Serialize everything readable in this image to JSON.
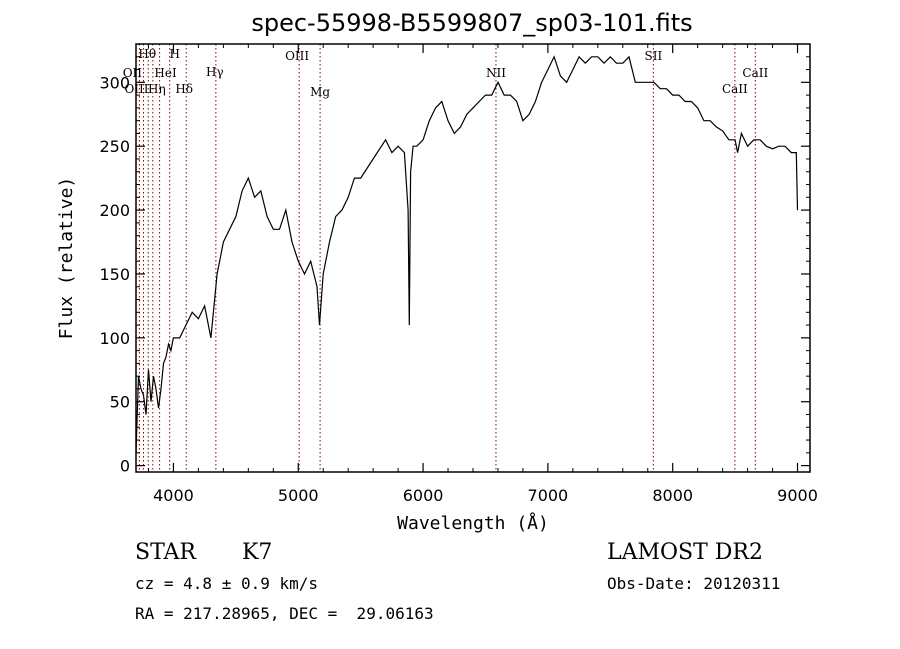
{
  "chart_data": {
    "type": "line",
    "title": "spec-55998-B5599807_sp03-101.fits",
    "xlabel": "Wavelength (Å)",
    "ylabel": "Flux (relative)",
    "xlim": [
      3700,
      9100
    ],
    "ylim": [
      -5,
      330
    ],
    "x_ticks": [
      4000,
      5000,
      6000,
      7000,
      8000,
      9000
    ],
    "y_ticks": [
      0,
      50,
      100,
      150,
      200,
      250,
      300
    ],
    "grid": false,
    "legend": "none",
    "line_color": "#000000",
    "marker_color": "#8b0000",
    "series": [
      {
        "x": [
          3700,
          3720,
          3740,
          3760,
          3780,
          3800,
          3820,
          3840,
          3860,
          3880,
          3900,
          3920,
          3940,
          3960,
          3980,
          4000,
          4050,
          4100,
          4150,
          4200,
          4250,
          4300,
          4350,
          4400,
          4450,
          4500,
          4550,
          4600,
          4650,
          4700,
          4750,
          4800,
          4850,
          4900,
          4950,
          5000,
          5050,
          5100,
          5150,
          5170,
          5200,
          5250,
          5300,
          5350,
          5400,
          5450,
          5500,
          5600,
          5700,
          5750,
          5800,
          5850,
          5880,
          5890,
          5900,
          5920,
          5950,
          6000,
          6050,
          6100,
          6150,
          6200,
          6250,
          6300,
          6350,
          6400,
          6450,
          6500,
          6550,
          6600,
          6650,
          6700,
          6750,
          6800,
          6850,
          6900,
          6950,
          7000,
          7050,
          7100,
          7150,
          7200,
          7250,
          7300,
          7350,
          7400,
          7450,
          7500,
          7550,
          7600,
          7650,
          7700,
          7750,
          7800,
          7850,
          7900,
          7950,
          8000,
          8050,
          8100,
          8150,
          8200,
          8250,
          8300,
          8350,
          8400,
          8450,
          8500,
          8520,
          8550,
          8600,
          8650,
          8700,
          8750,
          8800,
          8850,
          8900,
          8950,
          8990,
          9000
        ],
        "y": [
          10,
          70,
          60,
          55,
          40,
          75,
          50,
          70,
          60,
          45,
          60,
          80,
          85,
          95,
          90,
          100,
          100,
          110,
          120,
          115,
          125,
          100,
          150,
          175,
          185,
          195,
          215,
          225,
          210,
          215,
          195,
          185,
          185,
          200,
          175,
          160,
          150,
          160,
          140,
          110,
          150,
          175,
          195,
          200,
          210,
          225,
          225,
          240,
          255,
          245,
          250,
          245,
          200,
          110,
          230,
          250,
          250,
          255,
          270,
          280,
          285,
          270,
          260,
          265,
          275,
          280,
          285,
          290,
          290,
          300,
          290,
          290,
          285,
          270,
          275,
          285,
          300,
          310,
          320,
          305,
          300,
          310,
          320,
          315,
          320,
          320,
          315,
          320,
          315,
          315,
          320,
          300,
          300,
          300,
          300,
          295,
          295,
          290,
          290,
          285,
          285,
          280,
          270,
          270,
          265,
          262,
          255,
          255,
          245,
          260,
          250,
          255,
          255,
          250,
          248,
          250,
          250,
          245,
          245,
          200
        ]
      }
    ],
    "lines": [
      {
        "name": "Hθ",
        "x": 3798
      },
      {
        "name": "H",
        "x": 3970
      },
      {
        "name": "OII",
        "x": 3727
      },
      {
        "name": "HeI",
        "x": 3889
      },
      {
        "name": "OIII",
        "x": 3760
      },
      {
        "name": "Hη",
        "x": 3835
      },
      {
        "name": "Hδ",
        "x": 4102
      },
      {
        "name": "Hγ",
        "x": 4340
      },
      {
        "name": "OIII",
        "x": 5007
      },
      {
        "name": "Mg",
        "x": 5175
      },
      {
        "name": "NII",
        "x": 6584
      },
      {
        "name": "SII",
        "x": 7845
      },
      {
        "name": "CaII",
        "x": 8498
      },
      {
        "name": "CaII",
        "x": 8662
      }
    ]
  },
  "info": {
    "obj_class": "STAR",
    "subclass": "K7",
    "cz": "cz = 4.8 ± 0.9 km/s",
    "radec": "RA = 217.28965, DEC =  29.06163",
    "survey": "LAMOST DR2",
    "obs_date": "Obs-Date: 20120311"
  }
}
